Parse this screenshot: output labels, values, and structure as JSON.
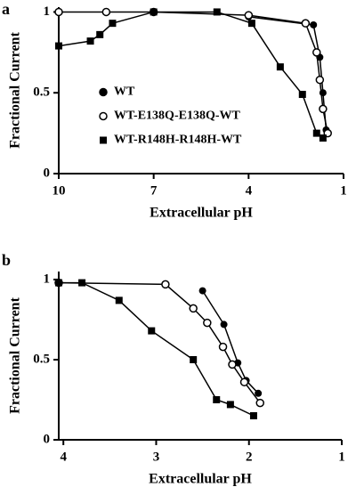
{
  "chart_data": [
    {
      "type": "scatter-line",
      "panel_label": "a",
      "x_label": "Extracellular pH",
      "y_label": "Fractional Current",
      "xlim": [
        10,
        1
      ],
      "xticks": [
        10,
        7,
        4,
        1
      ],
      "ylim": [
        0,
        1.03
      ],
      "yticks": [
        0,
        0.5,
        1
      ],
      "legend": "center-left",
      "series": [
        {
          "name": "WT",
          "color": "#000000",
          "marker": "circle-filled",
          "x": [
            4.0,
            1.95,
            1.75,
            1.65,
            1.55
          ],
          "values": [
            0.97,
            0.92,
            0.72,
            0.5,
            0.27
          ]
        },
        {
          "name": "WT-E138Q-E138Q-WT",
          "color": "#000000",
          "marker": "circle-open",
          "x": [
            10,
            8.5,
            7,
            4.0,
            2.2,
            1.85,
            1.75,
            1.65,
            1.5
          ],
          "values": [
            1.0,
            1.0,
            1.0,
            0.98,
            0.93,
            0.75,
            0.58,
            0.4,
            0.25
          ]
        },
        {
          "name": "WT-R148H-R148H-WT",
          "color": "#000000",
          "marker": "square",
          "x": [
            10,
            9.0,
            8.7,
            8.3,
            7,
            5,
            3.9,
            3.0,
            2.3,
            1.85,
            1.65
          ],
          "values": [
            0.79,
            0.82,
            0.86,
            0.93,
            1.0,
            1.0,
            0.93,
            0.66,
            0.49,
            0.25,
            0.22
          ]
        }
      ]
    },
    {
      "type": "scatter-line",
      "panel_label": "b",
      "x_label": "Extracellular pH",
      "y_label": "Fractional Current",
      "xlim": [
        4.05,
        1
      ],
      "xticks": [
        4,
        3,
        2,
        1
      ],
      "ylim": [
        0,
        1.05
      ],
      "yticks": [
        0,
        0.5,
        1
      ],
      "series": [
        {
          "color": "#000000",
          "marker": "circle-filled",
          "x": [
            2.5,
            2.27,
            2.12,
            2.03,
            1.9
          ],
          "values": [
            0.93,
            0.72,
            0.48,
            0.37,
            0.29
          ]
        },
        {
          "color": "#000000",
          "marker": "circle-open",
          "x": [
            4.05,
            2.9,
            2.6,
            2.45,
            2.28,
            2.18,
            2.05,
            1.88
          ],
          "values": [
            0.98,
            0.97,
            0.82,
            0.73,
            0.58,
            0.47,
            0.36,
            0.23
          ]
        },
        {
          "color": "#000000",
          "marker": "square",
          "x": [
            4.05,
            3.8,
            3.4,
            3.05,
            2.6,
            2.35,
            2.2,
            1.95
          ],
          "values": [
            0.98,
            0.98,
            0.87,
            0.68,
            0.5,
            0.25,
            0.22,
            0.15
          ]
        }
      ]
    }
  ]
}
